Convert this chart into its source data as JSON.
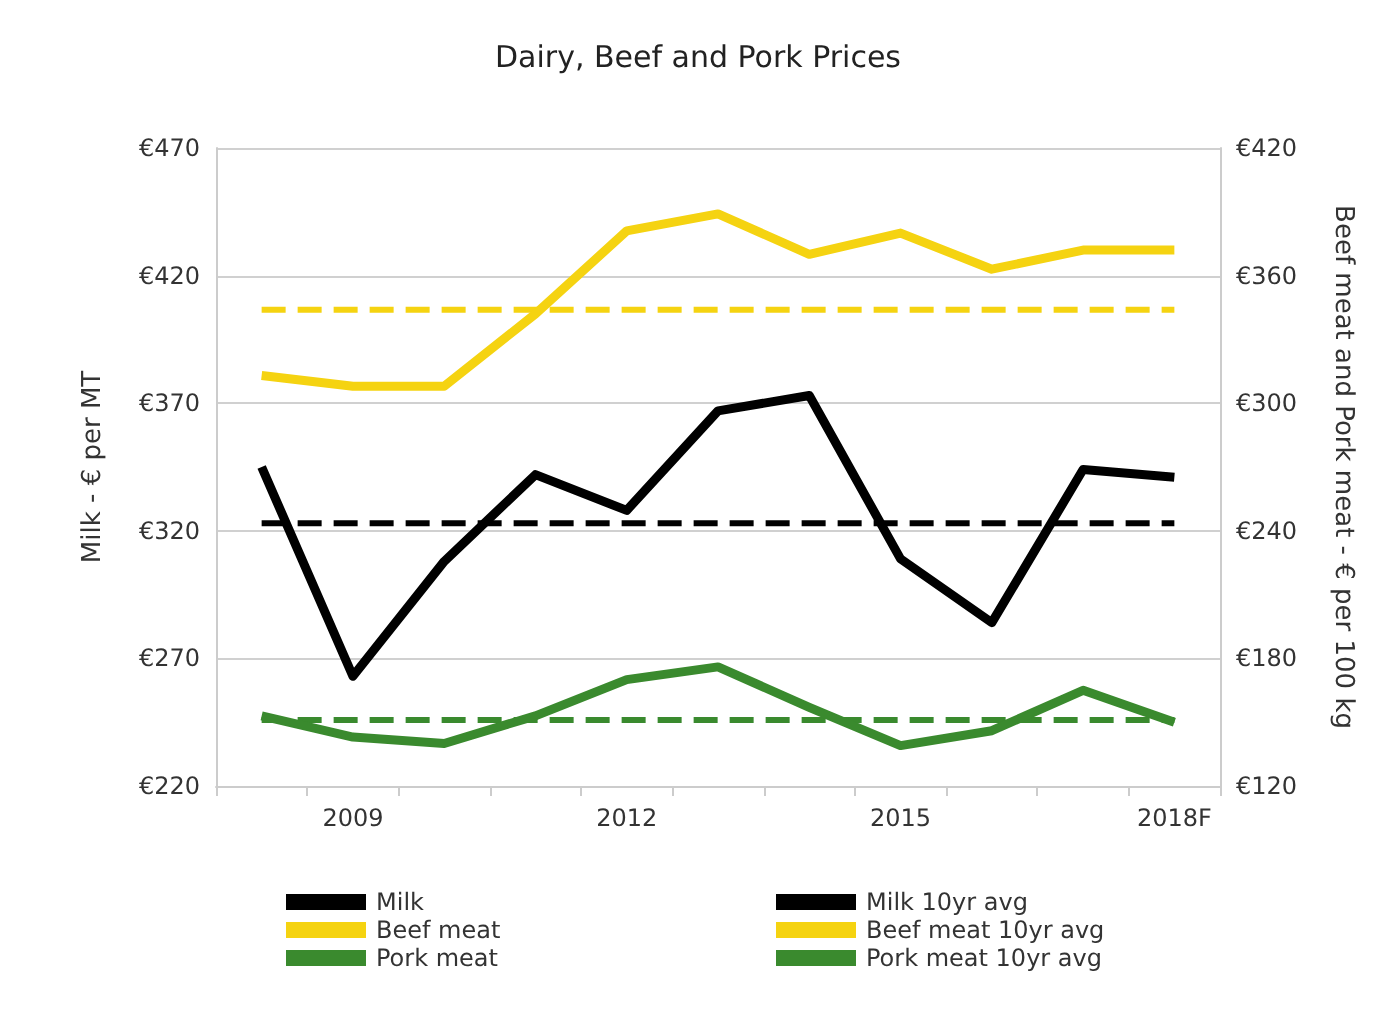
{
  "chart_data": {
    "type": "line",
    "title": "Dairy, Beef and Pork Prices",
    "ylabel": "Milk - € per MT",
    "y2label": "Beef meat and Pork meat - € per 100 kg",
    "categories": [
      null,
      "2009",
      null,
      null,
      "2012",
      null,
      null,
      "2015",
      null,
      null,
      "2018F"
    ],
    "ylim": [
      220,
      470
    ],
    "yticks": [
      {
        "value": 220,
        "label": "€220"
      },
      {
        "value": 270,
        "label": "€270"
      },
      {
        "value": 320,
        "label": "€320"
      },
      {
        "value": 370,
        "label": "€370"
      },
      {
        "value": 420,
        "label": "€420"
      },
      {
        "value": 470,
        "label": "€470"
      }
    ],
    "y2lim": [
      120,
      420
    ],
    "y2ticks": [
      {
        "value": 120,
        "label": "€120"
      },
      {
        "value": 180,
        "label": "€180"
      },
      {
        "value": 240,
        "label": "€240"
      },
      {
        "value": 300,
        "label": "€300"
      },
      {
        "value": 360,
        "label": "€360"
      },
      {
        "value": 420,
        "label": "€420"
      }
    ],
    "grid": "y",
    "legend": "bottom",
    "marker": "none",
    "series": [
      {
        "name": "Milk",
        "color": "#000000",
        "line_style": "solid",
        "values": [
          345,
          263,
          308,
          342,
          328,
          367,
          373,
          309,
          284,
          344,
          341
        ]
      },
      {
        "name": "Beef meat",
        "color": "#f5d311",
        "line_style": "solid",
        "axis": "y2",
        "values": [
          313,
          308,
          308,
          342,
          381,
          389,
          370,
          380,
          363,
          372,
          372
        ]
      },
      {
        "name": "Pork meat",
        "color": "#3a8a2e",
        "line_style": "solid",
        "axis": "y2",
        "values": [
          153,
          143,
          140,
          153,
          170,
          176,
          157,
          139,
          146,
          165,
          150
        ]
      },
      {
        "name": "Milk 10yr avg",
        "color": "#000000",
        "line_style": "dashed",
        "values": [
          323,
          323,
          323,
          323,
          323,
          323,
          323,
          323,
          323,
          323,
          323
        ]
      },
      {
        "name": "Beef meat 10yr avg",
        "color": "#f5d311",
        "line_style": "dashed",
        "axis": "y2",
        "values": [
          344,
          344,
          344,
          344,
          344,
          344,
          344,
          344,
          344,
          344,
          344
        ]
      },
      {
        "name": "Pork meat 10yr avg",
        "color": "#3a8a2e",
        "line_style": "dashed",
        "axis": "y2",
        "values": [
          151,
          151,
          151,
          151,
          151,
          151,
          151,
          151,
          151,
          151,
          151
        ]
      }
    ]
  }
}
